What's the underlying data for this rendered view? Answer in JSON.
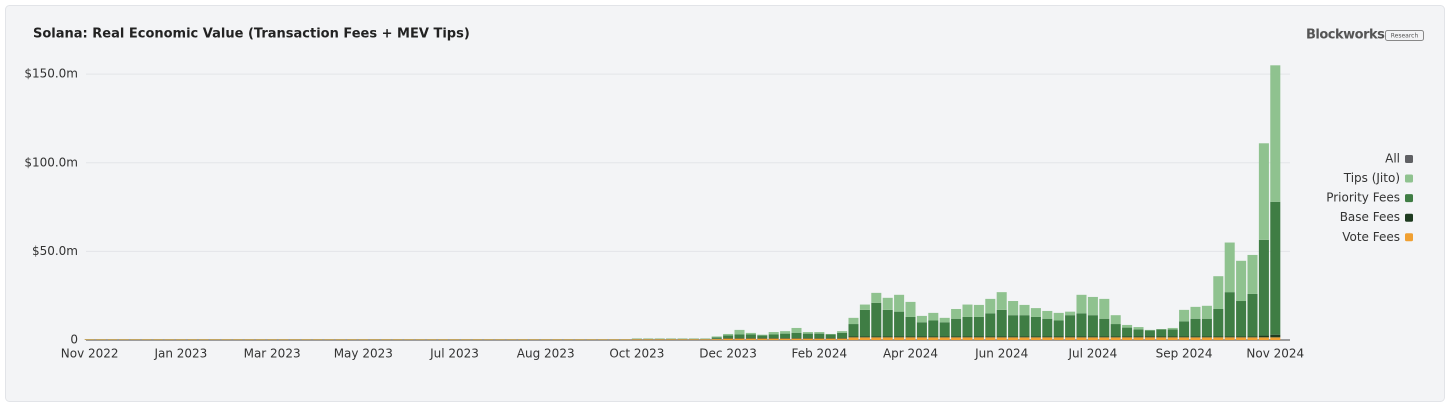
{
  "chart_data": {
    "type": "stacked-bar",
    "title": "Solana: Real Economic Value (Transaction Fees + MEV Tips)",
    "source": {
      "brand": "Blockworks",
      "tag": "Research"
    },
    "legend_all": {
      "name": "All",
      "color": "#5f6064"
    },
    "categories": [
      "Nov 2022",
      null,
      null,
      null,
      null,
      null,
      null,
      null,
      "Jan 2023",
      null,
      null,
      null,
      null,
      null,
      null,
      null,
      "Mar 2023",
      null,
      null,
      null,
      null,
      null,
      null,
      null,
      "May 2023",
      null,
      null,
      null,
      null,
      null,
      null,
      null,
      "Jul 2023",
      null,
      null,
      null,
      null,
      null,
      null,
      null,
      "Aug 2023",
      null,
      null,
      null,
      null,
      null,
      null,
      null,
      "Oct 2023",
      null,
      null,
      null,
      null,
      null,
      null,
      null,
      "Dec 2023",
      null,
      null,
      null,
      null,
      null,
      null,
      null,
      "Feb 2024",
      null,
      null,
      null,
      null,
      null,
      null,
      null,
      "Apr 2024",
      null,
      null,
      null,
      null,
      null,
      null,
      null,
      "Jun 2024",
      null,
      null,
      null,
      null,
      null,
      null,
      null,
      "Jul 2024",
      null,
      null,
      null,
      null,
      null,
      null,
      null,
      "Sep 2024",
      null,
      null,
      null,
      null,
      null,
      null,
      null,
      "Nov 2024"
    ],
    "series": [
      {
        "name": "Tips (Jito)",
        "color": "#8fc28f",
        "values": [
          0.05,
          0.05,
          0.05,
          0.05,
          0.05,
          0.05,
          0.05,
          0.05,
          0.05,
          0.05,
          0.05,
          0.05,
          0.05,
          0.05,
          0.05,
          0.05,
          0.05,
          0.05,
          0.05,
          0.05,
          0.05,
          0.05,
          0.05,
          0.05,
          0.05,
          0.05,
          0.05,
          0.05,
          0.05,
          0.05,
          0.05,
          0.05,
          0.05,
          0.05,
          0.05,
          0.05,
          0.05,
          0.05,
          0.05,
          0.05,
          0.05,
          0.05,
          0.05,
          0.05,
          0.05,
          0.05,
          0.05,
          0.05,
          0.2,
          0.2,
          0.2,
          0.2,
          0.2,
          0.2,
          0.2,
          0.5,
          0.8,
          2.6,
          0.9,
          0.4,
          1.4,
          1.4,
          2.7,
          0.9,
          0.9,
          0.3,
          0.9,
          3.5,
          3,
          5.6,
          6.8,
          9.5,
          8.5,
          3.6,
          4.3,
          2.5,
          5.5,
          7,
          6.8,
          8.2,
          10,
          8,
          5.8,
          5,
          4.4,
          4.3,
          2,
          10.5,
          10.3,
          11.2,
          5,
          1.5,
          1.3,
          0.2,
          0.2,
          0.8,
          6.5,
          6.7,
          7.3,
          18.5,
          28,
          22.7,
          22,
          54.5,
          77
        ]
      },
      {
        "name": "Priority Fees",
        "color": "#3f7d44",
        "values": [
          0.05,
          0.05,
          0.05,
          0.05,
          0.05,
          0.05,
          0.05,
          0.05,
          0.05,
          0.05,
          0.05,
          0.05,
          0.05,
          0.05,
          0.05,
          0.05,
          0.05,
          0.05,
          0.05,
          0.05,
          0.05,
          0.05,
          0.05,
          0.05,
          0.05,
          0.05,
          0.05,
          0.05,
          0.05,
          0.05,
          0.05,
          0.05,
          0.05,
          0.05,
          0.05,
          0.05,
          0.05,
          0.05,
          0.05,
          0.05,
          0.05,
          0.05,
          0.05,
          0.05,
          0.05,
          0.05,
          0.05,
          0.05,
          0.2,
          0.2,
          0.2,
          0.2,
          0.2,
          0.2,
          0.2,
          0.8,
          1.5,
          2,
          2,
          1.5,
          2,
          2.5,
          3,
          2.5,
          2.5,
          2,
          3,
          7,
          15,
          19,
          15,
          14,
          11,
          8,
          9,
          8,
          10,
          11,
          11,
          13,
          15,
          12,
          12,
          11,
          10,
          9,
          12,
          13,
          12,
          10,
          7,
          5,
          4,
          3.5,
          4,
          4,
          8.5,
          10,
          10,
          15.5,
          25,
          20,
          24,
          54,
          75
        ]
      },
      {
        "name": "Base Fees",
        "color": "#1e3b20",
        "values": [
          0.1,
          0.1,
          0.1,
          0.1,
          0.1,
          0.1,
          0.1,
          0.1,
          0.1,
          0.1,
          0.1,
          0.1,
          0.1,
          0.1,
          0.1,
          0.1,
          0.1,
          0.1,
          0.1,
          0.1,
          0.1,
          0.1,
          0.1,
          0.1,
          0.1,
          0.1,
          0.1,
          0.1,
          0.1,
          0.1,
          0.1,
          0.1,
          0.1,
          0.1,
          0.1,
          0.1,
          0.1,
          0.1,
          0.1,
          0.1,
          0.1,
          0.1,
          0.1,
          0.1,
          0.1,
          0.1,
          0.1,
          0.1,
          0.1,
          0.1,
          0.1,
          0.1,
          0.1,
          0.1,
          0.1,
          0.2,
          0.3,
          0.3,
          0.3,
          0.3,
          0.3,
          0.3,
          0.3,
          0.3,
          0.3,
          0.3,
          0.3,
          0.5,
          0.5,
          0.5,
          0.5,
          0.5,
          0.5,
          0.5,
          0.5,
          0.5,
          0.5,
          0.5,
          0.5,
          0.5,
          0.5,
          0.5,
          0.5,
          0.5,
          0.5,
          0.5,
          0.5,
          0.5,
          0.5,
          0.5,
          0.5,
          0.5,
          0.5,
          0.5,
          0.5,
          0.5,
          0.5,
          0.5,
          0.5,
          0.5,
          0.5,
          0.5,
          0.5,
          1,
          1.5
        ]
      },
      {
        "name": "Vote Fees",
        "color": "#f0a032",
        "values": [
          0.3,
          0.3,
          0.3,
          0.3,
          0.3,
          0.3,
          0.3,
          0.3,
          0.3,
          0.3,
          0.3,
          0.3,
          0.3,
          0.3,
          0.3,
          0.3,
          0.3,
          0.3,
          0.3,
          0.3,
          0.3,
          0.3,
          0.3,
          0.3,
          0.3,
          0.3,
          0.3,
          0.3,
          0.3,
          0.3,
          0.3,
          0.3,
          0.3,
          0.3,
          0.3,
          0.3,
          0.3,
          0.3,
          0.3,
          0.3,
          0.3,
          0.3,
          0.3,
          0.3,
          0.3,
          0.3,
          0.3,
          0.3,
          0.4,
          0.4,
          0.4,
          0.4,
          0.4,
          0.4,
          0.4,
          0.5,
          0.8,
          0.8,
          0.8,
          0.8,
          0.8,
          0.8,
          0.8,
          0.8,
          0.8,
          0.8,
          0.8,
          1.5,
          1.5,
          1.5,
          1.5,
          1.5,
          1.5,
          1.5,
          1.5,
          1.5,
          1.5,
          1.5,
          1.5,
          1.5,
          1.5,
          1.5,
          1.5,
          1.5,
          1.5,
          1.5,
          1.5,
          1.5,
          1.5,
          1.5,
          1.5,
          1.5,
          1.5,
          1.5,
          1.5,
          1.5,
          1.5,
          1.5,
          1.5,
          1.5,
          1.5,
          1.5,
          1.5,
          1.5,
          1.5
        ]
      }
    ],
    "ylim": [
      0,
      158
    ],
    "yticks": [
      0,
      {
        "value": 50,
        "label": "$50.0m"
      },
      {
        "value": 100,
        "label": "$100.0m"
      },
      {
        "value": 150,
        "label": "$150.0m"
      }
    ],
    "grid": true,
    "legend": "right"
  }
}
